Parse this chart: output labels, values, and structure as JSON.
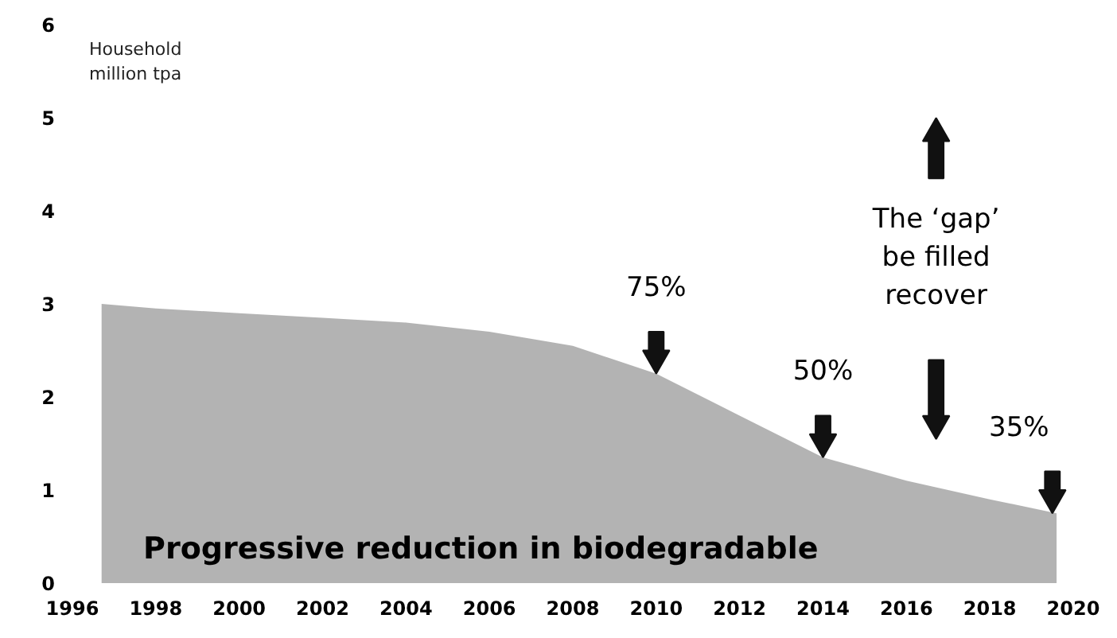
{
  "chart_data": {
    "type": "area",
    "ylabel": "Household\nmillion tpa",
    "x": [
      1996.7,
      1998,
      2000,
      2002,
      2004,
      2006,
      2008,
      2010,
      2012,
      2014,
      2016,
      2018,
      2019.6
    ],
    "series": [
      {
        "color": "#a6a6a6",
        "values": [
          3.0,
          2.95,
          2.9,
          2.85,
          2.8,
          2.7,
          2.55,
          2.25,
          1.8,
          1.35,
          1.1,
          0.9,
          0.75
        ]
      }
    ],
    "xlim": [
      1996,
      2020
    ],
    "ylim": [
      0,
      6
    ],
    "xticks": [
      1996,
      1998,
      2000,
      2002,
      2004,
      2006,
      2008,
      2010,
      2012,
      2014,
      2016,
      2018,
      2020
    ],
    "yticks": [
      0,
      1,
      2,
      3,
      4,
      5,
      6
    ],
    "grid": false,
    "annotations": [
      {
        "text": "75%",
        "x": 2010,
        "y": 2.25
      },
      {
        "text": "50%",
        "x": 2014,
        "y": 1.35
      },
      {
        "text": "35%",
        "x": 2019.5,
        "y": 0.75
      },
      "The ‘gap’\nbe filled\nrecover",
      "Progressive reduction in biodegradable"
    ]
  }
}
